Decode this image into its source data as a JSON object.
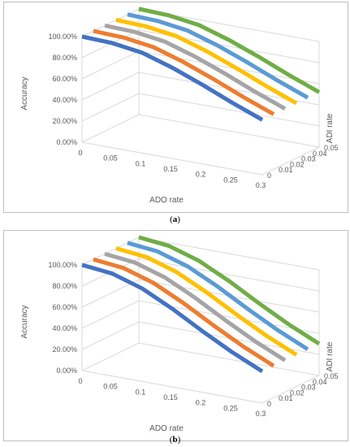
{
  "captions": {
    "a": "a",
    "b": "b"
  },
  "colors": {
    "series": [
      "#4472c4",
      "#ed7d31",
      "#a5a5a5",
      "#ffc000",
      "#5b9bd5",
      "#70ad47"
    ],
    "grid": "#d9d9d9"
  },
  "chart_data": [
    {
      "type": "line",
      "subtype": "3d-surface-lines",
      "panel": "a",
      "xlabel": "ADO rate",
      "ylabel": "Accuracy",
      "zlabel": "ADI rate",
      "x_ticks": [
        "0",
        "0.05",
        "0.1",
        "0.15",
        "0.2",
        "0.25",
        "0.3"
      ],
      "y_ticks": [
        "0.00%",
        "20.00%",
        "40.00%",
        "60.00%",
        "80.00%",
        "100.00%"
      ],
      "z_ticks": [
        "0",
        "0.01",
        "0.02",
        "0.03",
        "0.04",
        "0.05"
      ],
      "x": [
        0,
        0.05,
        0.1,
        0.15,
        0.2,
        0.25,
        0.3
      ],
      "ylim": [
        0,
        100
      ],
      "series": [
        {
          "adi": 0,
          "values": [
            100,
            99,
            95,
            86,
            75,
            63,
            52
          ]
        },
        {
          "adi": 0.01,
          "values": [
            100,
            99,
            95,
            86,
            75,
            63,
            52
          ]
        },
        {
          "adi": 0.02,
          "values": [
            100,
            99,
            95,
            86,
            75,
            63,
            52
          ]
        },
        {
          "adi": 0.03,
          "values": [
            100,
            99,
            95,
            86,
            75,
            63,
            52
          ]
        },
        {
          "adi": 0.04,
          "values": [
            100,
            99,
            95,
            86,
            75,
            63,
            52
          ]
        },
        {
          "adi": 0.05,
          "values": [
            100,
            99,
            95,
            86,
            75,
            63,
            52
          ]
        }
      ]
    },
    {
      "type": "line",
      "subtype": "3d-surface-lines",
      "panel": "b",
      "xlabel": "ADO rate",
      "ylabel": "Accuracy",
      "zlabel": "ADI rate",
      "x_ticks": [
        "0",
        "0.05",
        "0.1",
        "0.15",
        "0.2",
        "0.25",
        "0.3"
      ],
      "y_ticks": [
        "0.00%",
        "20.00%",
        "40.00%",
        "60.00%",
        "80.00%",
        "100.00%"
      ],
      "z_ticks": [
        "0",
        "0.01",
        "0.02",
        "0.03",
        "0.04",
        "0.05"
      ],
      "x": [
        0,
        0.05,
        0.1,
        0.15,
        0.2,
        0.25,
        0.3
      ],
      "ylim": [
        0,
        100
      ],
      "series": [
        {
          "adi": 0,
          "values": [
            100,
            97,
            88,
            74,
            58,
            43,
            30
          ]
        },
        {
          "adi": 0.01,
          "values": [
            100,
            97,
            88,
            74,
            58,
            43,
            30
          ]
        },
        {
          "adi": 0.02,
          "values": [
            100,
            97,
            88,
            74,
            58,
            43,
            30
          ]
        },
        {
          "adi": 0.03,
          "values": [
            100,
            97,
            88,
            74,
            58,
            43,
            30
          ]
        },
        {
          "adi": 0.04,
          "values": [
            100,
            97,
            88,
            74,
            58,
            43,
            30
          ]
        },
        {
          "adi": 0.05,
          "values": [
            100,
            97,
            88,
            74,
            58,
            43,
            30
          ]
        }
      ]
    }
  ]
}
